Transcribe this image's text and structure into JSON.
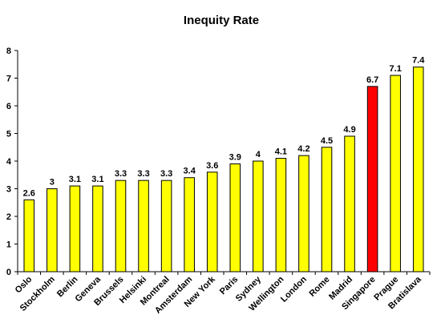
{
  "chart_data": {
    "type": "bar",
    "title": "Inequity Rate",
    "xlabel": "",
    "ylabel": "",
    "ylim": [
      0,
      8
    ],
    "yticks": [
      0,
      1,
      2,
      3,
      4,
      5,
      6,
      7,
      8
    ],
    "grid": false,
    "legend": "none",
    "categories": [
      "Oslo",
      "Stockholm",
      "Berlin",
      "Geneva",
      "Brussels",
      "Helsinki",
      "Montreal",
      "Amsterdam",
      "New York",
      "Paris",
      "Sydney",
      "Wellington",
      "London",
      "Rome",
      "Madrid",
      "Singapore",
      "Prague",
      "Bratislava"
    ],
    "values": [
      2.6,
      3,
      3.1,
      3.1,
      3.3,
      3.3,
      3.3,
      3.4,
      3.6,
      3.9,
      4,
      4.1,
      4.2,
      4.5,
      4.9,
      6.7,
      7.1,
      7.4
    ],
    "data_labels": [
      "2.6",
      "3",
      "3.1",
      "3.1",
      "3.3",
      "3.3",
      "3.3",
      "3.4",
      "3.6",
      "3.9",
      "4",
      "4.1",
      "4.2",
      "4.5",
      "4.9",
      "6.7",
      "7.1",
      "7.4"
    ],
    "bar_color": "#ffff00",
    "highlight_color": "#ff0000",
    "highlight_category": "Singapore",
    "bar_outline_color": "#000000"
  }
}
